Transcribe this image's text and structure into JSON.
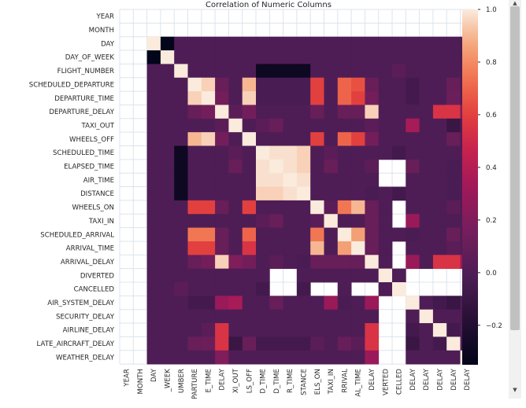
{
  "chart_data": {
    "type": "heatmap",
    "title": "Correlation of Numeric Columns",
    "row_labels": [
      "YEAR",
      "MONTH",
      "DAY",
      "DAY_OF_WEEK",
      "FLIGHT_NUMBER",
      "SCHEDULED_DEPARTURE",
      "DEPARTURE_TIME",
      "DEPARTURE_DELAY",
      "TAXI_OUT",
      "WHEELS_OFF",
      "SCHEDULED_TIME",
      "ELAPSED_TIME",
      "AIR_TIME",
      "DISTANCE",
      "WHEELS_ON",
      "TAXI_IN",
      "SCHEDULED_ARRIVAL",
      "ARRIVAL_TIME",
      "ARRIVAL_DELAY",
      "DIVERTED",
      "CANCELLED",
      "AIR_SYSTEM_DELAY",
      "SECURITY_DELAY",
      "AIRLINE_DELAY",
      "LATE_AIRCRAFT_DELAY",
      "WEATHER_DELAY"
    ],
    "col_labels": [
      "YEAR",
      "MONTH",
      "DAY",
      "_WEEK",
      "UMBER",
      "PARTURE",
      "E_TIME",
      "DELAY",
      "XI_OUT",
      "LS_OFF",
      "D_TIME",
      "D_TIME",
      "R_TIME",
      "STANCE",
      "ELS_ON",
      "TAXI_IN",
      "RRIVAL",
      "AL_TIME",
      "DELAY",
      "VERTED",
      "CELLED",
      "DELAY",
      "DELAY",
      "DELAY",
      "DELAY",
      "DELAY"
    ],
    "values": [
      [
        null,
        null,
        null,
        null,
        null,
        null,
        null,
        null,
        null,
        null,
        null,
        null,
        null,
        null,
        null,
        null,
        null,
        null,
        null,
        null,
        null,
        null,
        null,
        null,
        null,
        null
      ],
      [
        null,
        null,
        null,
        null,
        null,
        null,
        null,
        null,
        null,
        null,
        null,
        null,
        null,
        null,
        null,
        null,
        null,
        null,
        null,
        null,
        null,
        null,
        null,
        null,
        null,
        null
      ],
      [
        null,
        null,
        1.0,
        -0.35,
        0.0,
        0.0,
        0.0,
        0.0,
        0.0,
        0.0,
        0.0,
        0.0,
        0.0,
        0.0,
        0.0,
        0.0,
        0.0,
        0.0,
        0.0,
        0.0,
        0.0,
        0.0,
        0.0,
        0.0,
        0.0,
        0.0
      ],
      [
        null,
        null,
        -0.35,
        1.0,
        0.0,
        0.0,
        0.0,
        0.0,
        0.0,
        0.0,
        0.0,
        0.0,
        0.0,
        0.0,
        0.0,
        0.0,
        0.0,
        0.0,
        0.0,
        0.0,
        0.0,
        0.0,
        0.0,
        0.0,
        0.0,
        -0.02
      ],
      [
        null,
        null,
        0.0,
        0.0,
        1.0,
        0.0,
        0.0,
        0.0,
        0.0,
        0.0,
        -0.3,
        -0.3,
        -0.3,
        -0.3,
        0.0,
        0.0,
        0.0,
        0.0,
        0.0,
        0.0,
        0.05,
        0.0,
        0.0,
        0.0,
        0.0,
        0.0
      ],
      [
        null,
        null,
        0.0,
        0.0,
        0.0,
        1.0,
        0.95,
        0.1,
        0.0,
        0.9,
        -0.02,
        -0.02,
        -0.02,
        -0.02,
        0.6,
        0.0,
        0.7,
        0.65,
        0.1,
        0.0,
        0.0,
        -0.05,
        0.0,
        0.0,
        0.1,
        0.0
      ],
      [
        null,
        null,
        0.0,
        0.0,
        0.0,
        0.95,
        1.0,
        0.15,
        0.0,
        0.95,
        -0.02,
        -0.02,
        -0.02,
        -0.02,
        0.6,
        0.0,
        0.7,
        0.6,
        0.15,
        0.0,
        0.0,
        -0.05,
        0.0,
        0.0,
        0.12,
        0.0
      ],
      [
        null,
        null,
        0.0,
        0.0,
        0.0,
        0.1,
        0.15,
        1.0,
        0.05,
        0.15,
        0.0,
        0.0,
        0.0,
        0.0,
        0.1,
        0.0,
        0.1,
        0.1,
        0.95,
        0.0,
        0.0,
        0.0,
        0.0,
        0.55,
        0.55,
        0.2
      ],
      [
        null,
        null,
        0.0,
        0.0,
        0.0,
        0.0,
        0.0,
        0.05,
        1.0,
        0.0,
        0.05,
        0.1,
        0.0,
        0.0,
        0.0,
        0.0,
        0.0,
        0.0,
        0.05,
        0.0,
        0.0,
        0.35,
        0.0,
        0.0,
        -0.1,
        0.0
      ],
      [
        null,
        null,
        0.0,
        0.0,
        0.0,
        0.9,
        0.95,
        0.15,
        0.0,
        1.0,
        0.0,
        0.0,
        0.0,
        0.0,
        0.6,
        0.0,
        0.7,
        0.6,
        0.15,
        0.0,
        0.0,
        0.0,
        0.0,
        0.0,
        0.1,
        0.0
      ],
      [
        null,
        null,
        0.0,
        0.0,
        -0.3,
        0.0,
        0.0,
        0.0,
        0.05,
        0.0,
        1.0,
        0.98,
        0.98,
        0.95,
        0.0,
        0.05,
        0.0,
        0.0,
        0.0,
        0.0,
        -0.05,
        0.0,
        0.0,
        0.0,
        0.0,
        0.0
      ],
      [
        null,
        null,
        0.0,
        0.0,
        -0.3,
        0.0,
        0.0,
        0.0,
        0.1,
        0.0,
        0.98,
        1.0,
        0.98,
        0.95,
        0.0,
        0.1,
        0.0,
        0.0,
        0.05,
        null,
        null,
        0.1,
        0.0,
        0.0,
        -0.02,
        0.0
      ],
      [
        null,
        null,
        0.0,
        0.0,
        -0.3,
        0.0,
        0.0,
        0.0,
        0.0,
        0.0,
        0.98,
        0.98,
        1.0,
        0.98,
        0.0,
        0.0,
        0.0,
        0.0,
        0.0,
        null,
        null,
        0.0,
        0.0,
        0.0,
        -0.02,
        0.0
      ],
      [
        null,
        null,
        0.0,
        0.0,
        -0.3,
        0.0,
        0.0,
        0.0,
        0.0,
        0.0,
        0.95,
        0.95,
        0.98,
        1.0,
        0.0,
        0.0,
        0.0,
        0.0,
        -0.02,
        0.0,
        -0.05,
        0.0,
        0.0,
        0.0,
        -0.02,
        0.0
      ],
      [
        null,
        null,
        0.0,
        0.0,
        0.0,
        0.6,
        0.6,
        0.1,
        0.0,
        0.6,
        0.0,
        0.0,
        0.0,
        0.0,
        1.0,
        0.05,
        0.75,
        0.9,
        0.1,
        0.0,
        null,
        0.0,
        0.0,
        0.0,
        0.05,
        0.0
      ],
      [
        null,
        null,
        0.0,
        0.0,
        0.0,
        0.0,
        0.0,
        0.0,
        0.0,
        0.0,
        0.05,
        0.1,
        0.0,
        0.0,
        0.05,
        1.0,
        0.0,
        0.0,
        0.1,
        0.0,
        null,
        0.3,
        0.0,
        0.0,
        0.0,
        0.0
      ],
      [
        null,
        null,
        0.0,
        0.0,
        0.0,
        0.75,
        0.75,
        0.1,
        0.0,
        0.7,
        0.0,
        0.0,
        0.0,
        0.0,
        0.75,
        0.0,
        1.0,
        0.85,
        0.1,
        0.0,
        0.0,
        -0.02,
        0.0,
        0.0,
        0.1,
        0.0
      ],
      [
        null,
        null,
        0.0,
        0.0,
        0.0,
        0.6,
        0.6,
        0.1,
        0.0,
        0.55,
        0.0,
        0.0,
        0.0,
        0.0,
        0.9,
        0.0,
        0.85,
        1.0,
        0.1,
        0.0,
        null,
        0.0,
        0.0,
        0.0,
        0.05,
        0.0
      ],
      [
        null,
        null,
        0.0,
        0.0,
        0.0,
        0.1,
        0.15,
        0.95,
        0.2,
        0.15,
        0.0,
        0.05,
        0.0,
        -0.02,
        0.1,
        0.1,
        0.1,
        0.1,
        1.0,
        0.0,
        null,
        0.3,
        0.0,
        0.55,
        0.55,
        0.3
      ],
      [
        null,
        null,
        0.0,
        0.0,
        0.0,
        0.0,
        0.0,
        0.0,
        0.0,
        0.0,
        0.0,
        null,
        null,
        0.0,
        0.0,
        0.0,
        0.0,
        0.0,
        0.0,
        1.0,
        0.0,
        null,
        null,
        null,
        null,
        null
      ],
      [
        null,
        null,
        0.0,
        0.0,
        0.05,
        0.0,
        0.0,
        0.0,
        0.0,
        0.0,
        -0.05,
        null,
        null,
        -0.05,
        null,
        null,
        0.0,
        null,
        null,
        0.0,
        1.0,
        null,
        null,
        null,
        null,
        null
      ],
      [
        null,
        null,
        0.0,
        0.0,
        0.0,
        -0.05,
        -0.05,
        0.3,
        0.35,
        0.0,
        0.0,
        0.1,
        0.0,
        0.0,
        0.0,
        0.3,
        -0.02,
        0.0,
        0.3,
        null,
        null,
        1.0,
        0.0,
        -0.05,
        -0.1,
        0.0
      ],
      [
        null,
        null,
        0.0,
        0.0,
        0.0,
        0.0,
        0.0,
        0.0,
        0.0,
        0.0,
        0.0,
        0.0,
        0.0,
        0.0,
        0.0,
        0.0,
        0.0,
        0.0,
        0.0,
        null,
        null,
        0.0,
        1.0,
        0.0,
        0.0,
        0.0
      ],
      [
        null,
        null,
        0.0,
        0.0,
        0.0,
        0.0,
        0.05,
        0.55,
        0.0,
        0.0,
        0.0,
        0.0,
        0.0,
        0.0,
        0.0,
        0.0,
        0.0,
        0.0,
        0.55,
        null,
        null,
        -0.05,
        0.0,
        1.0,
        -0.05,
        0.0
      ],
      [
        null,
        null,
        0.0,
        0.0,
        0.0,
        0.1,
        0.12,
        0.55,
        -0.1,
        0.1,
        -0.05,
        -0.05,
        -0.05,
        -0.05,
        0.05,
        0.0,
        0.1,
        0.05,
        0.55,
        null,
        null,
        -0.1,
        0.0,
        -0.05,
        1.0,
        0.0
      ],
      [
        null,
        null,
        0.0,
        0.0,
        0.0,
        0.0,
        0.0,
        0.2,
        0.0,
        0.0,
        0.0,
        0.0,
        0.0,
        0.0,
        0.0,
        0.0,
        0.0,
        0.0,
        0.3,
        null,
        null,
        0.0,
        0.0,
        0.0,
        0.0,
        1.0
      ]
    ],
    "colorbar": {
      "min": -0.35,
      "max": 1.0,
      "ticks": [
        1.0,
        0.8,
        0.6,
        0.4,
        0.2,
        0.0,
        -0.2
      ],
      "tick_labels": [
        "1.0",
        "0.8",
        "0.6",
        "0.4",
        "0.2",
        "0.0",
        "−0.2"
      ]
    },
    "colormap": "rocket",
    "missing_color": "#ffffff",
    "grid": true
  },
  "scrollbar": {
    "up_arrow": "▲",
    "down_arrow": "▼"
  }
}
